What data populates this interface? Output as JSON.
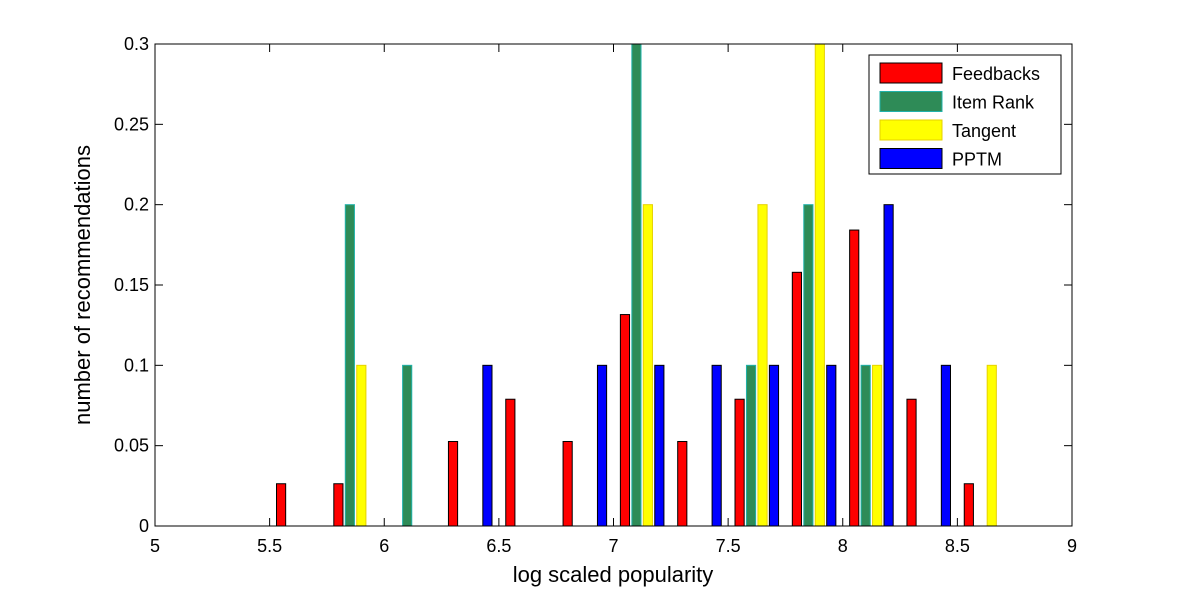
{
  "chart_data": {
    "type": "bar",
    "xlabel": "log scaled popularity",
    "ylabel": "number of recommendations",
    "xlim": [
      5,
      9
    ],
    "ylim": [
      0,
      0.3
    ],
    "x_ticks": [
      "5",
      "5.5",
      "6",
      "6.5",
      "7",
      "7.5",
      "8",
      "8.5",
      "9"
    ],
    "y_ticks": [
      "0",
      "0.05",
      "0.1",
      "0.15",
      "0.2",
      "0.25",
      "0.3"
    ],
    "grid": false,
    "legend_position": "top-right",
    "bin_centers": [
      5.125,
      5.375,
      5.625,
      5.875,
      6.125,
      6.375,
      6.625,
      6.875,
      7.125,
      7.375,
      7.625,
      7.875,
      8.125,
      8.375,
      8.625,
      8.875
    ],
    "series": [
      {
        "name": "Feedbacks",
        "color": "#ff0000",
        "values": [
          0,
          0,
          0.0263,
          0.0263,
          0,
          0.0526,
          0.0789,
          0.0526,
          0.1316,
          0.0526,
          0.0789,
          0.1579,
          0.1842,
          0.0789,
          0.0263,
          0
        ]
      },
      {
        "name": "Item Rank",
        "color": "#2e8b57",
        "values": [
          0,
          0,
          0,
          0.2,
          0.1,
          0,
          0,
          0,
          0.3,
          0,
          0.1,
          0.2,
          0.1,
          0,
          0,
          0
        ]
      },
      {
        "name": "Tangent",
        "color": "#ffff00",
        "values": [
          0,
          0,
          0,
          0.1,
          0,
          0,
          0,
          0,
          0.2,
          0,
          0.2,
          0.3,
          0.1,
          0,
          0.1,
          0
        ]
      },
      {
        "name": "PPTM",
        "color": "#0000ff",
        "values": [
          0,
          0,
          0,
          0,
          0,
          0.1,
          0,
          0.1,
          0.1,
          0.1,
          0.1,
          0.1,
          0.2,
          0.1,
          0,
          0
        ]
      }
    ]
  }
}
